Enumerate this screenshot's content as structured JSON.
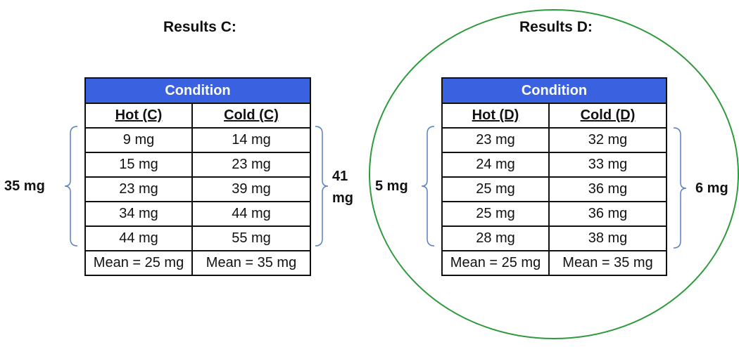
{
  "panels": [
    {
      "title": "Results C:",
      "condition_header": "Condition",
      "columns": [
        "Hot (C)",
        "Cold (C)"
      ],
      "rows": [
        [
          "9 mg",
          "14 mg"
        ],
        [
          "15 mg",
          "23 mg"
        ],
        [
          "23 mg",
          "39 mg"
        ],
        [
          "34 mg",
          "44 mg"
        ],
        [
          "44 mg",
          "55 mg"
        ]
      ],
      "means": [
        "Mean = 25 mg",
        "Mean = 35 mg"
      ],
      "left_range": "35 mg",
      "right_range_line1": "41",
      "right_range_line2": "mg",
      "circled": false
    },
    {
      "title": "Results D:",
      "condition_header": "Condition",
      "columns": [
        "Hot (D)",
        "Cold (D)"
      ],
      "rows": [
        [
          "23 mg",
          "32 mg"
        ],
        [
          "24 mg",
          "33 mg"
        ],
        [
          "25 mg",
          "36 mg"
        ],
        [
          "25 mg",
          "36 mg"
        ],
        [
          "28 mg",
          "38 mg"
        ]
      ],
      "means": [
        "Mean = 25 mg",
        "Mean = 35 mg"
      ],
      "left_range": "5 mg",
      "right_range": "6 mg",
      "circled": true
    }
  ],
  "colors": {
    "header_fill": "#3a62e0",
    "bracket": "#5a7fc0",
    "circle": "#2e9a3e"
  }
}
